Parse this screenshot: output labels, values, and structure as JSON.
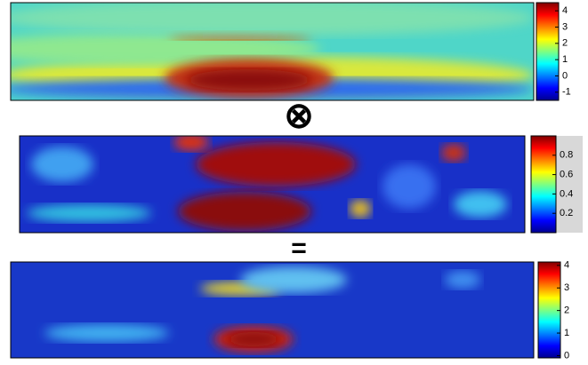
{
  "chart_data": [
    {
      "type": "heatmap",
      "clim": [
        -1.5,
        4.5
      ],
      "cticks": [
        4,
        3,
        2,
        1,
        0,
        -1
      ]
    },
    {
      "type": "heatmap",
      "clim": [
        0,
        1
      ],
      "cticks": [
        0.8,
        0.6,
        0.4,
        0.2
      ]
    },
    {
      "type": "heatmap",
      "clim": [
        -0.1,
        4.15
      ],
      "cticks": [
        4,
        3,
        2,
        1,
        0
      ]
    }
  ],
  "operators": [
    "⊗",
    "="
  ]
}
